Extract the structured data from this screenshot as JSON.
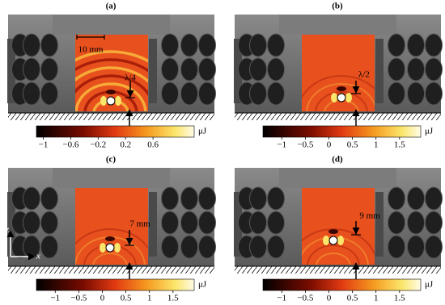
{
  "panels": [
    {
      "label": "(a)",
      "annotations": [
        "10 mm",
        "λ/4"
      ],
      "colorbar": {
        "unit": "μJ",
        "lim": [
          -1.1,
          1.2
        ],
        "ticks": [
          {
            "value": -1,
            "label": "−1"
          },
          {
            "value": -0.6,
            "label": "−0.6"
          },
          {
            "value": -0.2,
            "label": "−0.2"
          },
          0.2,
          0.6
        ]
      }
    },
    {
      "label": "(b)",
      "annotations": [
        "λ/2"
      ],
      "colorbar": {
        "unit": "μJ",
        "lim": [
          -1.4,
          1.95
        ],
        "ticks": [
          {
            "value": -1,
            "label": "−1"
          },
          {
            "value": -0.5,
            "label": "−0.5"
          },
          0,
          0.5,
          1,
          1.5
        ]
      }
    },
    {
      "label": "(c)",
      "annotations": [
        "7 mm"
      ],
      "axis_labels": [
        "z",
        "x"
      ],
      "colorbar": {
        "unit": "μJ",
        "lim": [
          -1.4,
          1.95
        ],
        "ticks": [
          {
            "value": -1,
            "label": "−1"
          },
          {
            "value": -0.5,
            "label": "−0.5"
          },
          0,
          0.5,
          1,
          1.5
        ]
      }
    },
    {
      "label": "(d)",
      "annotations": [
        "9 mm"
      ],
      "colorbar": {
        "unit": "μJ",
        "lim": [
          -1.4,
          1.95
        ],
        "ticks": [
          {
            "value": -1,
            "label": "−1"
          },
          {
            "value": -0.5,
            "label": "−0.5"
          },
          0,
          0.5,
          1,
          1.5
        ]
      }
    }
  ]
}
